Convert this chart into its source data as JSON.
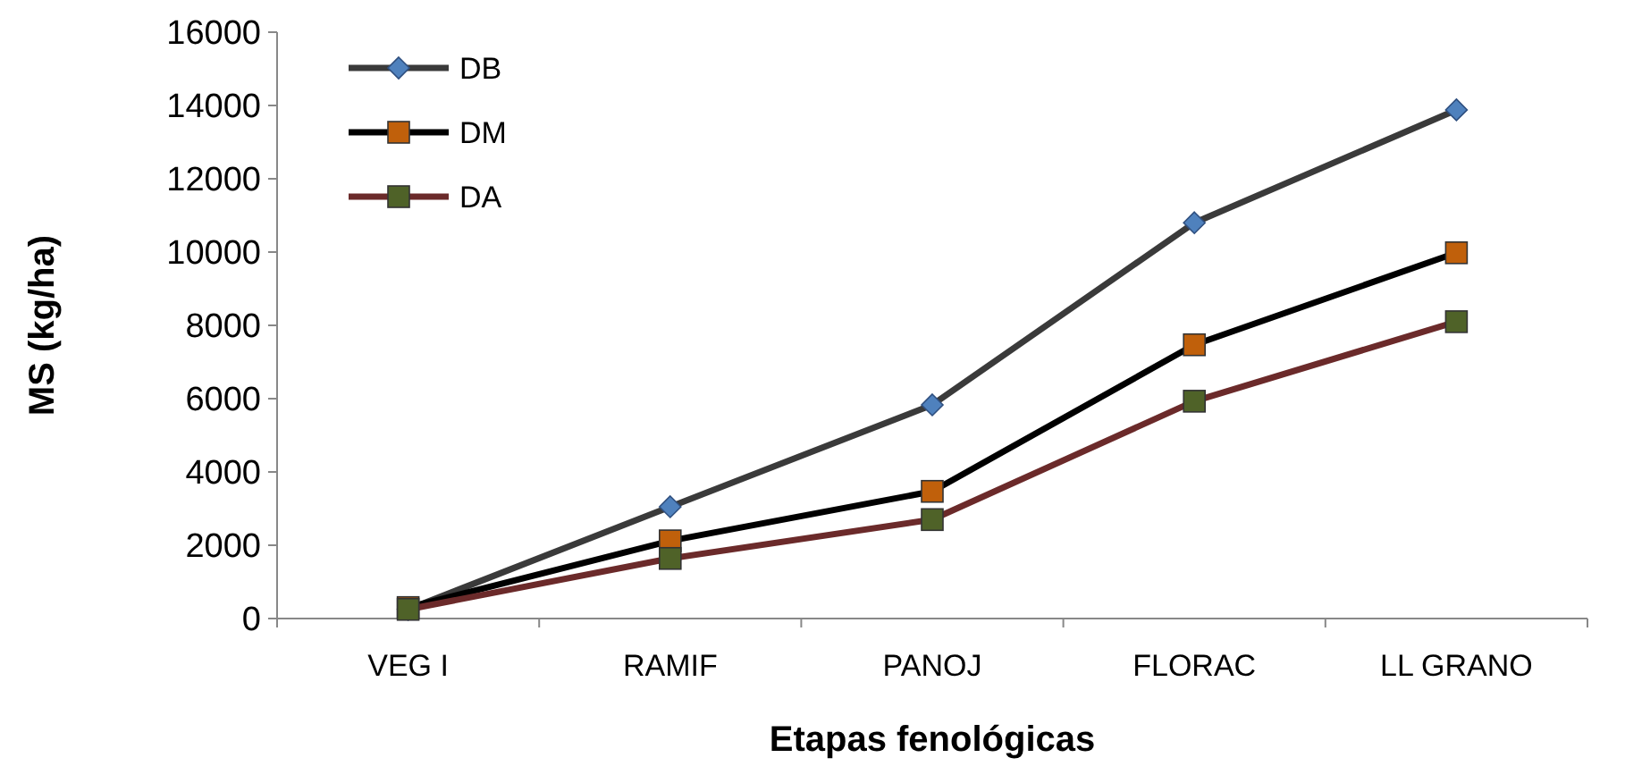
{
  "chart_data": {
    "type": "line",
    "xlabel": "Etapas fenológicas",
    "ylabel": "MS (kg/ha)",
    "categories": [
      "VEG I",
      "RAMIF",
      "PANOJ",
      "FLORAC",
      "LL GRANO"
    ],
    "series": [
      {
        "name": "DB",
        "color": "#3a3a3a",
        "marker": "diamond",
        "colors": [
          "#4f81bd",
          "#4f81bd",
          "#4f81bd",
          "#4f81bd",
          "#4f81bd"
        ],
        "values": [
          250,
          3050,
          5830,
          10800,
          13880
        ]
      },
      {
        "name": "DM",
        "color": "#000000",
        "marker": "square",
        "colors": [
          "#c0600b",
          "#c0600b",
          "#c0600b",
          "#c0600b",
          "#c0600b"
        ],
        "values": [
          300,
          2120,
          3470,
          7470,
          9980
        ]
      },
      {
        "name": "DA",
        "color": "#6b2a2a",
        "marker": "square",
        "colors": [
          "#4f6228",
          "#4f6228",
          "#4f6228",
          "#4f6228",
          "#4f6228"
        ],
        "values": [
          250,
          1640,
          2700,
          5930,
          8100
        ]
      }
    ],
    "ylim": [
      0,
      16000
    ],
    "yticks": [
      0,
      2000,
      4000,
      6000,
      8000,
      10000,
      12000,
      14000,
      16000
    ],
    "grid": false,
    "legend": "top left",
    "line_style": "solid"
  }
}
